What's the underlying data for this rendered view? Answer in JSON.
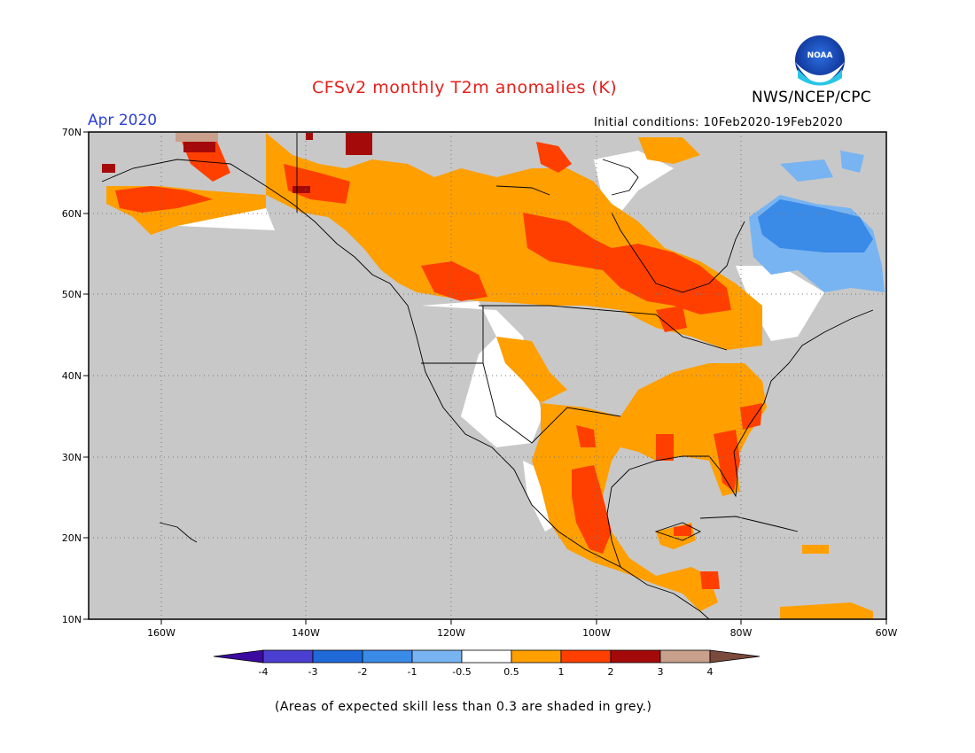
{
  "header": {
    "title": "CFSv2 monthly T2m anomalies (K)",
    "agency": "NWS/NCEP/CPC",
    "month": "Apr 2020",
    "initial_conditions": "Initial conditions: 10Feb2020-19Feb2020",
    "logo_text": "NOAA"
  },
  "map": {
    "lon_range": [
      -170,
      -60
    ],
    "lat_range": [
      10,
      70
    ],
    "lon_ticks": [
      "160W",
      "140W",
      "120W",
      "100W",
      "80W",
      "60W"
    ],
    "lat_ticks": [
      "10N",
      "20N",
      "30N",
      "40N",
      "50N",
      "60N",
      "70N"
    ],
    "grid": "dotted",
    "no_skill_color": "#c8c8c8"
  },
  "colorbar": {
    "labels": [
      "-4",
      "-3",
      "-2",
      "-1",
      "-0.5",
      "0.5",
      "1",
      "2",
      "3",
      "4"
    ],
    "colors": [
      "#3c0aa0",
      "#4b3fd2",
      "#1f6ad8",
      "#3a8ae8",
      "#78b4f2",
      "#ffffff",
      "#ff9f00",
      "#ff3f00",
      "#a50a0a",
      "#c8a08c",
      "#7a4a3c"
    ]
  },
  "footnote": "(Areas of expected skill less than 0.3 are shaded in grey.)"
}
